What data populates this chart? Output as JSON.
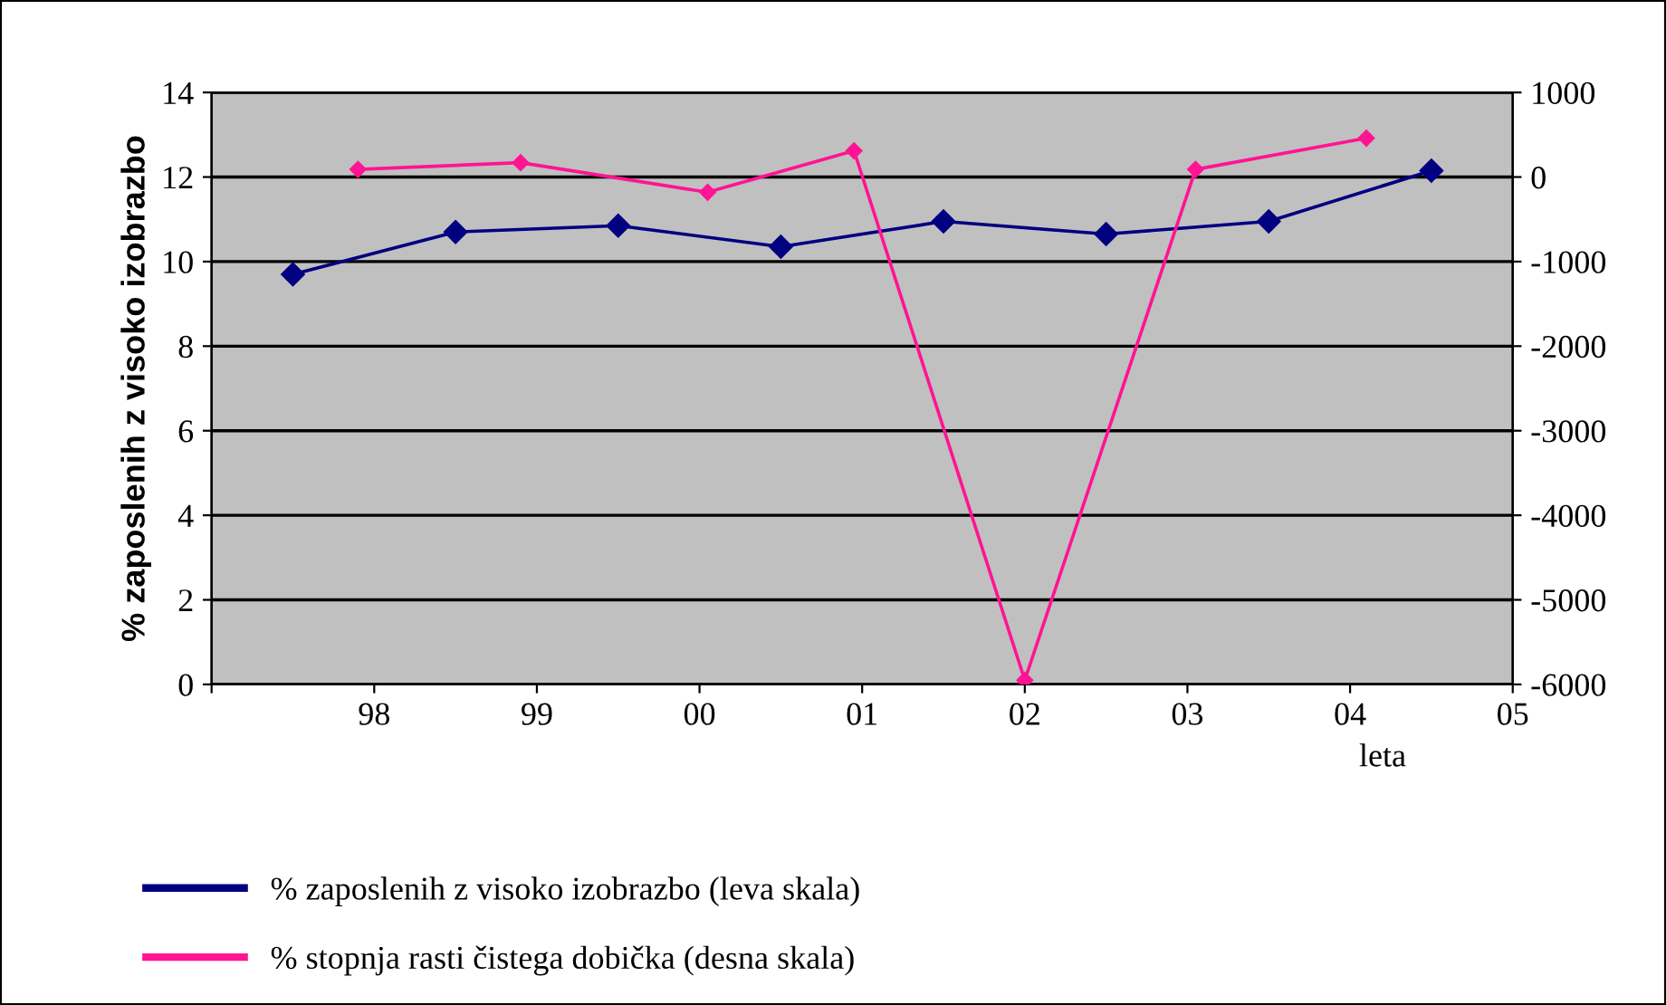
{
  "chart_data": {
    "type": "line",
    "ylabel": "% zaposlenih z visoko izobrazbo",
    "xlabel": "leta",
    "xlim": [
      1997,
      2005
    ],
    "xticks": [
      {
        "value": 1997,
        "label": null
      },
      {
        "value": 1998,
        "label": "98"
      },
      {
        "value": 1999,
        "label": "99"
      },
      {
        "value": 2000,
        "label": "00"
      },
      {
        "value": 2001,
        "label": "01"
      },
      {
        "value": 2002,
        "label": "02"
      },
      {
        "value": 2003,
        "label": "03"
      },
      {
        "value": 2004,
        "label": "04"
      },
      {
        "value": 2005,
        "label": "05"
      }
    ],
    "ylim": [
      0,
      14
    ],
    "yticks": [
      0,
      2,
      4,
      6,
      8,
      10,
      12,
      14
    ],
    "y2lim": [
      -6000,
      1000
    ],
    "y2ticks": [
      {
        "value": -6000,
        "label": "-6000"
      },
      {
        "value": -5000,
        "label": "-5000"
      },
      {
        "value": -4000,
        "label": "-4000"
      },
      {
        "value": -3000,
        "label": "-3000"
      },
      {
        "value": -2000,
        "label": "-2000"
      },
      {
        "value": -1000,
        "label": "-1000"
      },
      0,
      1000
    ],
    "grid": "y",
    "legend": "bottom",
    "marker": "diamond",
    "line_style": "solid",
    "series": [
      {
        "name": "% zaposlenih z visoko izobrazbo (leva skala)",
        "color": "#000080",
        "x": [
          1997.5,
          1998.5,
          1999.5,
          2000.5,
          2001.5,
          2002.5,
          2003.5,
          2004.5
        ],
        "values": [
          9.7,
          10.7,
          10.85,
          10.35,
          10.95,
          10.65,
          10.95,
          12.15
        ]
      },
      {
        "name": "% stopnja rasti čistega dobička (desna skala)",
        "color": "#ff1493",
        "axis": "y2",
        "x": [
          1997.9,
          1998.9,
          2000.05,
          2000.95,
          2002,
          2003.05,
          2004.1
        ],
        "values": [
          90,
          170,
          -180,
          310,
          -5950,
          90,
          460
        ]
      }
    ]
  }
}
